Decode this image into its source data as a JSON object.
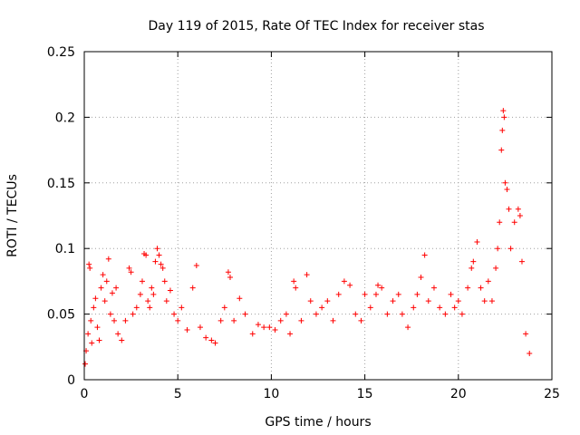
{
  "chart_data": {
    "type": "scatter",
    "title": "Day 119 of 2015, Rate Of TEC Index for receiver stas",
    "xlabel": "GPS time / hours",
    "ylabel": "ROTI / TECUs",
    "xlim": [
      0,
      25
    ],
    "ylim": [
      0,
      0.25
    ],
    "xticks": [
      0,
      5,
      10,
      15,
      20,
      25
    ],
    "xtick_labels": [
      "0",
      "5",
      "10",
      "15",
      "20",
      "25"
    ],
    "yticks": [
      0,
      0.05,
      0.1,
      0.15,
      0.2,
      0.25
    ],
    "ytick_labels": [
      "0",
      "0.05",
      "0.1",
      "0.15",
      "0.2",
      "0.25"
    ],
    "grid": true,
    "marker": "+",
    "series_color": "#ff0000",
    "series": [
      {
        "values": [
          [
            0.05,
            0.012
          ],
          [
            0.1,
            0.022
          ],
          [
            0.2,
            0.035
          ],
          [
            0.25,
            0.088
          ],
          [
            0.3,
            0.085
          ],
          [
            0.35,
            0.045
          ],
          [
            0.4,
            0.028
          ],
          [
            0.5,
            0.055
          ],
          [
            0.6,
            0.062
          ],
          [
            0.7,
            0.04
          ],
          [
            0.8,
            0.03
          ],
          [
            0.9,
            0.07
          ],
          [
            1.0,
            0.08
          ],
          [
            1.1,
            0.06
          ],
          [
            1.2,
            0.075
          ],
          [
            1.3,
            0.092
          ],
          [
            1.4,
            0.05
          ],
          [
            1.5,
            0.066
          ],
          [
            1.6,
            0.045
          ],
          [
            1.7,
            0.07
          ],
          [
            1.8,
            0.035
          ],
          [
            2.0,
            0.03
          ],
          [
            2.2,
            0.045
          ],
          [
            2.4,
            0.085
          ],
          [
            2.5,
            0.082
          ],
          [
            2.6,
            0.05
          ],
          [
            2.8,
            0.055
          ],
          [
            3.0,
            0.065
          ],
          [
            3.1,
            0.075
          ],
          [
            3.2,
            0.096
          ],
          [
            3.3,
            0.095
          ],
          [
            3.4,
            0.06
          ],
          [
            3.5,
            0.055
          ],
          [
            3.6,
            0.07
          ],
          [
            3.7,
            0.065
          ],
          [
            3.8,
            0.09
          ],
          [
            3.9,
            0.1
          ],
          [
            4.0,
            0.095
          ],
          [
            4.1,
            0.088
          ],
          [
            4.2,
            0.085
          ],
          [
            4.3,
            0.075
          ],
          [
            4.4,
            0.06
          ],
          [
            4.6,
            0.068
          ],
          [
            4.8,
            0.05
          ],
          [
            5.0,
            0.045
          ],
          [
            5.2,
            0.055
          ],
          [
            5.5,
            0.038
          ],
          [
            5.8,
            0.07
          ],
          [
            6.0,
            0.087
          ],
          [
            6.2,
            0.04
          ],
          [
            6.5,
            0.032
          ],
          [
            6.8,
            0.03
          ],
          [
            7.0,
            0.028
          ],
          [
            7.3,
            0.045
          ],
          [
            7.5,
            0.055
          ],
          [
            7.7,
            0.082
          ],
          [
            7.8,
            0.078
          ],
          [
            8.0,
            0.045
          ],
          [
            8.3,
            0.062
          ],
          [
            8.6,
            0.05
          ],
          [
            9.0,
            0.035
          ],
          [
            9.3,
            0.042
          ],
          [
            9.6,
            0.04
          ],
          [
            9.9,
            0.04
          ],
          [
            10.2,
            0.038
          ],
          [
            10.5,
            0.045
          ],
          [
            10.8,
            0.05
          ],
          [
            11.0,
            0.035
          ],
          [
            11.2,
            0.075
          ],
          [
            11.3,
            0.07
          ],
          [
            11.6,
            0.045
          ],
          [
            11.9,
            0.08
          ],
          [
            12.1,
            0.06
          ],
          [
            12.4,
            0.05
          ],
          [
            12.7,
            0.055
          ],
          [
            13.0,
            0.06
          ],
          [
            13.3,
            0.045
          ],
          [
            13.6,
            0.065
          ],
          [
            13.9,
            0.075
          ],
          [
            14.2,
            0.072
          ],
          [
            14.5,
            0.05
          ],
          [
            14.8,
            0.045
          ],
          [
            15.0,
            0.065
          ],
          [
            15.3,
            0.055
          ],
          [
            15.6,
            0.065
          ],
          [
            15.7,
            0.072
          ],
          [
            15.9,
            0.07
          ],
          [
            16.2,
            0.05
          ],
          [
            16.5,
            0.06
          ],
          [
            16.8,
            0.065
          ],
          [
            17.0,
            0.05
          ],
          [
            17.3,
            0.04
          ],
          [
            17.6,
            0.055
          ],
          [
            17.8,
            0.065
          ],
          [
            18.0,
            0.078
          ],
          [
            18.2,
            0.095
          ],
          [
            18.4,
            0.06
          ],
          [
            18.7,
            0.07
          ],
          [
            19.0,
            0.055
          ],
          [
            19.3,
            0.05
          ],
          [
            19.6,
            0.065
          ],
          [
            19.8,
            0.055
          ],
          [
            20.0,
            0.06
          ],
          [
            20.2,
            0.05
          ],
          [
            20.5,
            0.07
          ],
          [
            20.7,
            0.085
          ],
          [
            20.8,
            0.09
          ],
          [
            21.0,
            0.105
          ],
          [
            21.2,
            0.07
          ],
          [
            21.4,
            0.06
          ],
          [
            21.6,
            0.075
          ],
          [
            21.8,
            0.06
          ],
          [
            22.0,
            0.085
          ],
          [
            22.1,
            0.1
          ],
          [
            22.2,
            0.12
          ],
          [
            22.3,
            0.175
          ],
          [
            22.35,
            0.19
          ],
          [
            22.4,
            0.205
          ],
          [
            22.45,
            0.2
          ],
          [
            22.5,
            0.15
          ],
          [
            22.6,
            0.145
          ],
          [
            22.7,
            0.13
          ],
          [
            22.8,
            0.1
          ],
          [
            23.0,
            0.12
          ],
          [
            23.2,
            0.13
          ],
          [
            23.3,
            0.125
          ],
          [
            23.4,
            0.09
          ],
          [
            23.6,
            0.035
          ],
          [
            23.8,
            0.02
          ]
        ]
      }
    ]
  }
}
